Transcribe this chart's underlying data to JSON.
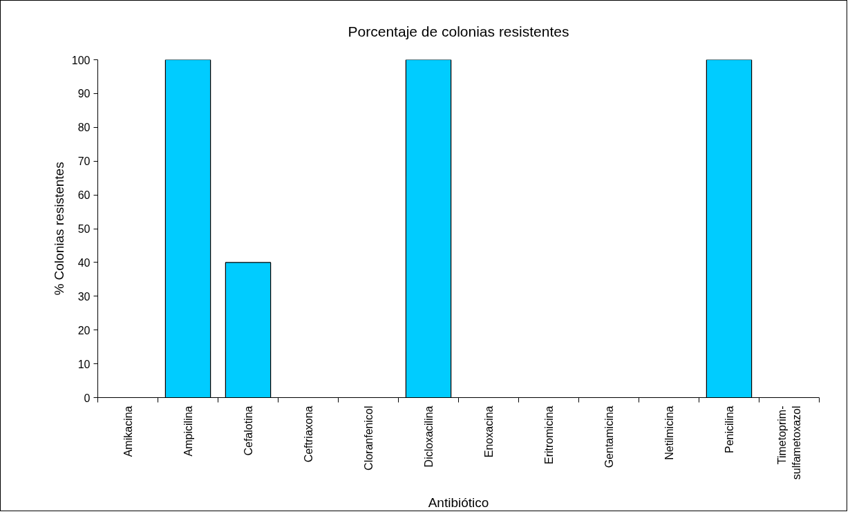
{
  "chart_data": {
    "type": "bar",
    "title": "Porcentaje de colonias resistentes",
    "xlabel": "Antibiótico",
    "ylabel": "% Colonias resistentes",
    "categories": [
      "Amikacina",
      "Ampicilina",
      "Cefalotina",
      "Ceftriaxona",
      "Cloranfenicol",
      "Dicloxacilina",
      "Enoxacina",
      "Eritromicina",
      "Gentamicina",
      "Netilmicina",
      "Penicilina",
      "Timetoprim-sulfametoxazol"
    ],
    "values": [
      0,
      100,
      40,
      0,
      0,
      100,
      0,
      0,
      0,
      0,
      100,
      0
    ],
    "color": "#00ccff",
    "ylim": [
      0,
      100
    ],
    "yticks": [
      0,
      10,
      20,
      30,
      40,
      50,
      60,
      70,
      80,
      90,
      100
    ]
  }
}
